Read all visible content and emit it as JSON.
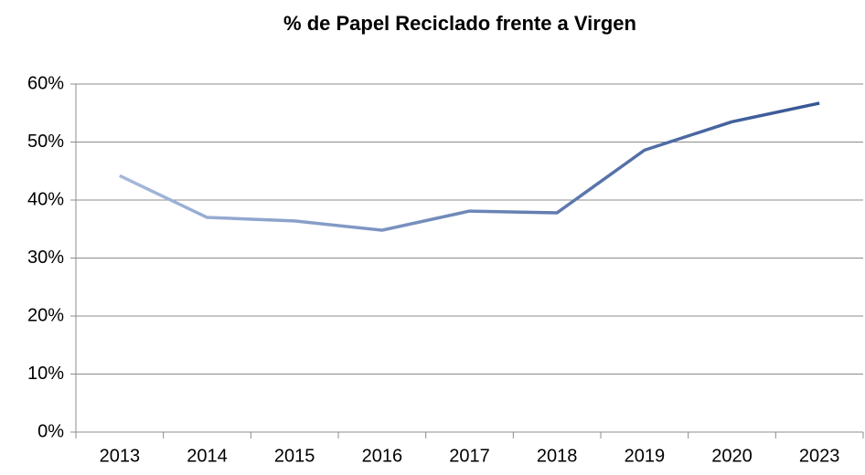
{
  "chart_data": {
    "type": "line",
    "title": "% de Papel Reciclado frente a Virgen",
    "categories": [
      "2013",
      "2014",
      "2015",
      "2016",
      "2017",
      "2018",
      "2019",
      "2020",
      "2023"
    ],
    "values": [
      44.2,
      37.0,
      36.4,
      34.8,
      38.1,
      37.8,
      48.6,
      53.5,
      56.7
    ],
    "color_start": "#adbfe0",
    "color_end": "#2f4f8f",
    "ylim": [
      0,
      60
    ],
    "yticks": [
      {
        "value": 0,
        "label": "0%"
      },
      {
        "value": 10,
        "label": "10%"
      },
      {
        "value": 20,
        "label": "20%"
      },
      {
        "value": 30,
        "label": "30%"
      },
      {
        "value": 40,
        "label": "40%"
      },
      {
        "value": 50,
        "label": "50%"
      },
      {
        "value": 60,
        "label": "60%"
      }
    ],
    "grid": true
  }
}
